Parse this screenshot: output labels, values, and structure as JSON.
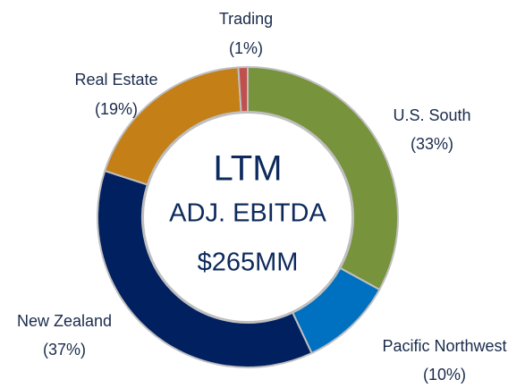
{
  "chart_data": {
    "type": "donut",
    "categories": [
      "U.S. South",
      "Pacific Northwest",
      "New Zealand",
      "Real Estate",
      "Trading"
    ],
    "values": [
      33,
      10,
      37,
      19,
      1
    ],
    "value_labels": [
      "(33%)",
      "(10%)",
      "(37%)",
      "(19%)",
      "(1%)"
    ],
    "colors": [
      "#77933c",
      "#0070c0",
      "#002060",
      "#c47f17",
      "#c0504d"
    ],
    "center_text": [
      "LTM",
      "ADJ. EBITDA",
      "$265MM"
    ]
  }
}
